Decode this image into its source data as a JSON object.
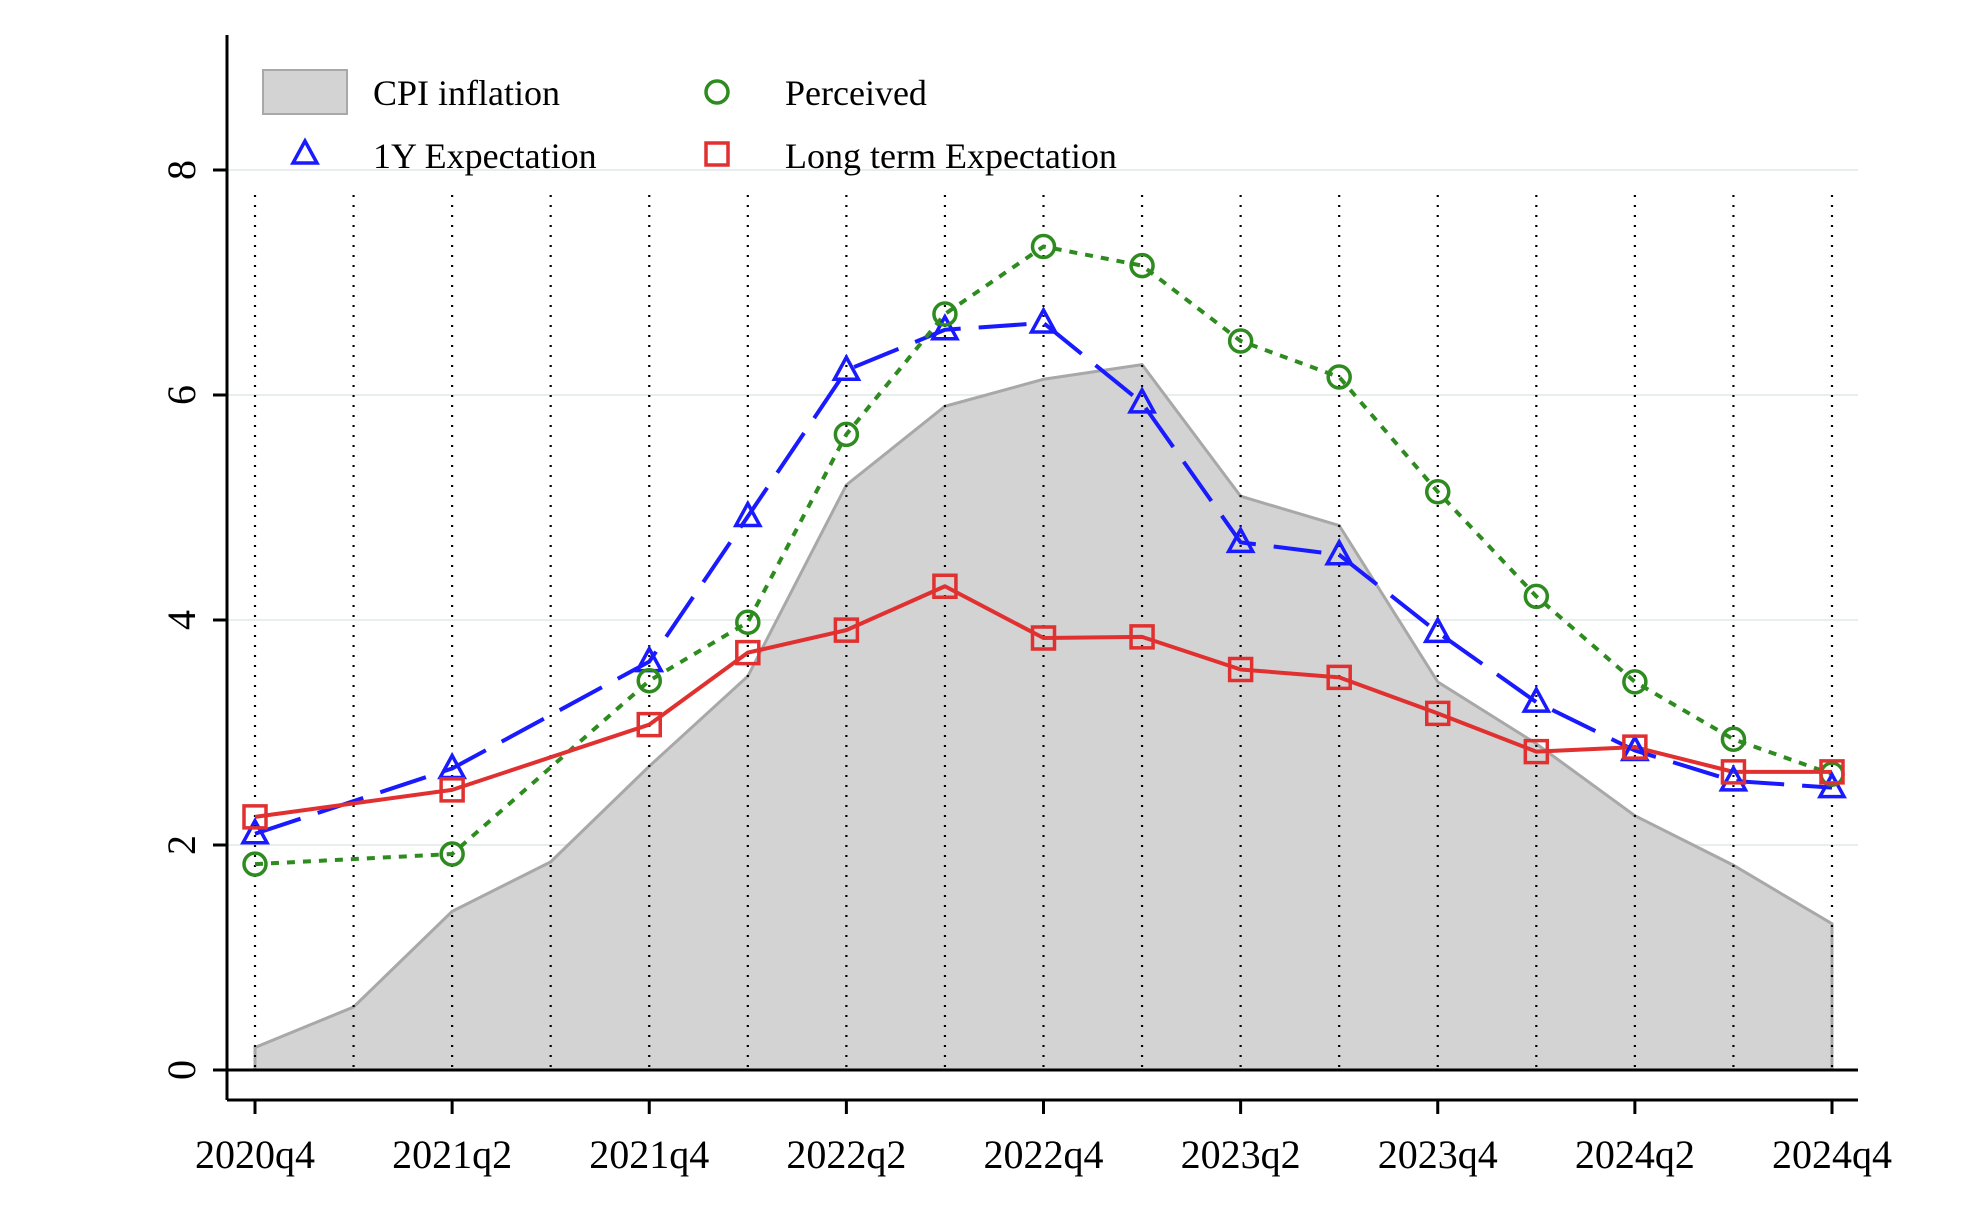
{
  "chart_data": {
    "type": "line",
    "categories": [
      "2020q4",
      "2021q1",
      "2021q2",
      "2021q3",
      "2021q4",
      "2022q1",
      "2022q2",
      "2022q3",
      "2022q4",
      "2023q1",
      "2023q2",
      "2023q3",
      "2023q4",
      "2024q1",
      "2024q2",
      "2024q3",
      "2024q4"
    ],
    "x_tick_labels": [
      "2020q4",
      "2021q2",
      "2021q4",
      "2022q2",
      "2022q4",
      "2023q2",
      "2023q4",
      "2024q2",
      "2024q4"
    ],
    "y_tick_labels": [
      "0",
      "2",
      "4",
      "6",
      "8"
    ],
    "ylim": [
      0,
      9.2
    ],
    "y_ticks": [
      0,
      2,
      4,
      6,
      8
    ],
    "grid": "horizontal light lines; vertical dotted lines at each quarter",
    "legend_position": "top-left",
    "series": [
      {
        "name": "CPI inflation",
        "kind": "area",
        "color": "#d3d3d3",
        "values": [
          0.2,
          0.56,
          1.41,
          1.85,
          2.7,
          3.5,
          5.2,
          5.9,
          6.14,
          6.27,
          5.1,
          4.84,
          3.45,
          2.9,
          2.26,
          1.82,
          1.3
        ]
      },
      {
        "name": "1Y Expectation",
        "kind": "line",
        "marker": "triangle",
        "color": "#1a1aff",
        "values": [
          2.1,
          null,
          2.68,
          null,
          3.63,
          4.92,
          6.22,
          6.58,
          6.64,
          5.93,
          4.69,
          4.58,
          3.89,
          3.27,
          2.84,
          2.57,
          2.51
        ]
      },
      {
        "name": "Perceived",
        "kind": "line",
        "marker": "circle",
        "color": "#2e8b1f",
        "values": [
          1.83,
          null,
          1.92,
          null,
          3.46,
          3.98,
          5.65,
          6.72,
          7.32,
          7.15,
          6.48,
          6.16,
          5.14,
          4.21,
          3.45,
          2.94,
          2.63
        ]
      },
      {
        "name": "Long term Expectation",
        "kind": "line",
        "marker": "square",
        "color": "#e03030",
        "values": [
          2.25,
          null,
          2.49,
          null,
          3.07,
          3.71,
          3.91,
          4.3,
          3.84,
          3.85,
          3.56,
          3.49,
          3.17,
          2.83,
          2.87,
          2.65,
          2.65
        ]
      }
    ],
    "legend": [
      {
        "label": "CPI inflation",
        "symbol": "area",
        "color": "#d3d3d3"
      },
      {
        "label": "Perceived",
        "symbol": "circle",
        "color": "#2e8b1f"
      },
      {
        "label": "1Y Expectation",
        "symbol": "triangle",
        "color": "#1a1aff"
      },
      {
        "label": "Long term Expectation",
        "symbol": "square",
        "color": "#e03030"
      }
    ]
  }
}
